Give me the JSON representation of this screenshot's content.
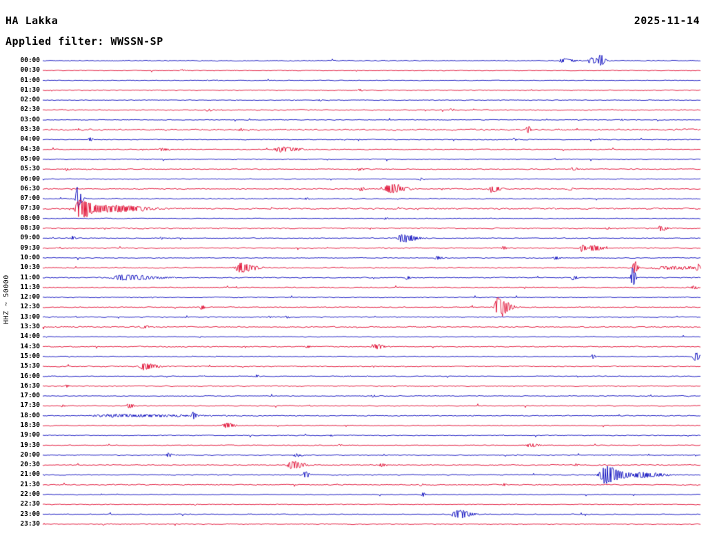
{
  "header": {
    "station": "HA Lakka",
    "date": "2025-11-14",
    "filter_label": "Applied filter: WWSSN-SP"
  },
  "axis": {
    "channel_label": "HHZ ~ 50000"
  },
  "chart_data": {
    "type": "line",
    "subtype": "helicorder-seismogram",
    "title": "HA Lakka",
    "date": "2025-11-14",
    "filter": "WWSSN-SP",
    "channel": "HHZ",
    "scale": 50000,
    "minutes_per_row": 30,
    "trace_colors": {
      "blue": "#0000bb",
      "red": "#df0029"
    },
    "rows": [
      {
        "label": "00:00",
        "color": "blue",
        "noise": 0.8,
        "events": [
          [
            0.79,
            3,
            8
          ],
          [
            0.833,
            5,
            6
          ],
          [
            0.847,
            7,
            3
          ]
        ]
      },
      {
        "label": "00:30",
        "color": "red",
        "noise": 0.7,
        "events": [
          [
            0.21,
            1.5,
            3
          ]
        ]
      },
      {
        "label": "01:00",
        "color": "blue",
        "noise": 0.7,
        "events": []
      },
      {
        "label": "01:30",
        "color": "red",
        "noise": 0.8,
        "events": [
          [
            0.48,
            1.5,
            3
          ]
        ]
      },
      {
        "label": "02:00",
        "color": "blue",
        "noise": 0.7,
        "events": [
          [
            0.42,
            1.5,
            2
          ]
        ]
      },
      {
        "label": "02:30",
        "color": "red",
        "noise": 0.9,
        "events": [
          [
            0.25,
            1.8,
            4
          ],
          [
            0.62,
            1.5,
            3
          ]
        ]
      },
      {
        "label": "03:00",
        "color": "blue",
        "noise": 0.7,
        "events": [
          [
            0.88,
            1.5,
            2
          ]
        ]
      },
      {
        "label": "03:30",
        "color": "red",
        "noise": 1.5,
        "events": [
          [
            0.3,
            2,
            4
          ],
          [
            0.737,
            5,
            2
          ]
        ]
      },
      {
        "label": "04:00",
        "color": "blue",
        "noise": 0.8,
        "events": [
          [
            0.071,
            3,
            2
          ],
          [
            0.716,
            2,
            2
          ]
        ]
      },
      {
        "label": "04:30",
        "color": "red",
        "noise": 0.9,
        "events": [
          [
            0.179,
            2.5,
            5
          ],
          [
            0.36,
            4,
            12
          ]
        ]
      },
      {
        "label": "05:00",
        "color": "blue",
        "noise": 0.7,
        "events": []
      },
      {
        "label": "05:30",
        "color": "red",
        "noise": 1.0,
        "events": [
          [
            0.035,
            2,
            3
          ],
          [
            0.48,
            2,
            3
          ],
          [
            0.805,
            2.5,
            4
          ]
        ]
      },
      {
        "label": "06:00",
        "color": "blue",
        "noise": 0.7,
        "events": [
          [
            0.574,
            2,
            2
          ]
        ]
      },
      {
        "label": "06:30",
        "color": "red",
        "noise": 1.1,
        "events": [
          [
            0.483,
            3,
            4
          ],
          [
            0.527,
            7,
            10
          ],
          [
            0.682,
            5,
            6
          ],
          [
            0.8,
            2.5,
            3
          ]
        ]
      },
      {
        "label": "07:00",
        "color": "blue",
        "noise": 0.9,
        "events": [
          [
            0.052,
            17,
            3
          ],
          [
            0.4,
            1.5,
            3
          ]
        ]
      },
      {
        "label": "07:30",
        "color": "red",
        "noise": 1.4,
        "events": [
          [
            0.056,
            15,
            9
          ],
          [
            0.1,
            5,
            25
          ]
        ]
      },
      {
        "label": "08:00",
        "color": "blue",
        "noise": 0.8,
        "events": [
          [
            0.52,
            1.5,
            3
          ]
        ]
      },
      {
        "label": "08:30",
        "color": "red",
        "noise": 1.2,
        "events": [
          [
            0.857,
            2,
            3
          ],
          [
            0.939,
            4,
            4
          ]
        ]
      },
      {
        "label": "09:00",
        "color": "blue",
        "noise": 0.9,
        "events": [
          [
            0.045,
            3,
            2
          ],
          [
            0.179,
            2,
            2
          ],
          [
            0.546,
            6,
            10
          ]
        ]
      },
      {
        "label": "09:30",
        "color": "red",
        "noise": 1.0,
        "events": [
          [
            0.7,
            3.5,
            2
          ],
          [
            0.819,
            5,
            3
          ],
          [
            0.836,
            5,
            6
          ]
        ]
      },
      {
        "label": "10:00",
        "color": "blue",
        "noise": 0.8,
        "events": [
          [
            0.598,
            3,
            4
          ],
          [
            0.779,
            3,
            3
          ]
        ]
      },
      {
        "label": "10:30",
        "color": "red",
        "noise": 1.1,
        "events": [
          [
            0.3,
            7,
            10
          ],
          [
            0.899,
            13,
            2
          ],
          [
            0.95,
            2,
            40
          ],
          [
            0.995,
            4,
            3
          ]
        ]
      },
      {
        "label": "11:00",
        "color": "blue",
        "noise": 1.0,
        "events": [
          [
            0.122,
            4,
            22
          ],
          [
            0.553,
            3,
            2
          ],
          [
            0.805,
            4,
            3
          ],
          [
            0.896,
            16,
            2
          ]
        ]
      },
      {
        "label": "11:30",
        "color": "red",
        "noise": 1.0,
        "events": [
          [
            0.988,
            3,
            3
          ]
        ]
      },
      {
        "label": "12:00",
        "color": "blue",
        "noise": 0.8,
        "events": []
      },
      {
        "label": "12:30",
        "color": "red",
        "noise": 1.0,
        "events": [
          [
            0.241,
            4,
            2
          ],
          [
            0.692,
            15,
            7
          ]
        ]
      },
      {
        "label": "13:00",
        "color": "blue",
        "noise": 0.9,
        "events": [
          [
            0.344,
            2,
            2
          ],
          [
            0.37,
            2,
            2
          ]
        ]
      },
      {
        "label": "13:30",
        "color": "red",
        "noise": 1.2,
        "events": [
          [
            0.15,
            2.5,
            5
          ]
        ]
      },
      {
        "label": "14:00",
        "color": "blue",
        "noise": 0.7,
        "events": []
      },
      {
        "label": "14:30",
        "color": "red",
        "noise": 1.0,
        "events": [
          [
            0.401,
            2,
            3
          ],
          [
            0.506,
            3.5,
            6
          ]
        ]
      },
      {
        "label": "15:00",
        "color": "blue",
        "noise": 0.8,
        "events": [
          [
            0.836,
            4,
            2
          ],
          [
            0.991,
            6,
            4
          ]
        ]
      },
      {
        "label": "15:30",
        "color": "red",
        "noise": 1.0,
        "events": [
          [
            0.153,
            5,
            9
          ]
        ]
      },
      {
        "label": "16:00",
        "color": "blue",
        "noise": 0.8,
        "events": [
          [
            0.325,
            2,
            2
          ]
        ]
      },
      {
        "label": "16:30",
        "color": "red",
        "noise": 0.9,
        "events": [
          [
            0.035,
            2,
            2
          ]
        ]
      },
      {
        "label": "17:00",
        "color": "blue",
        "noise": 0.8,
        "events": [
          [
            0.501,
            2,
            2
          ]
        ]
      },
      {
        "label": "17:30",
        "color": "red",
        "noise": 0.9,
        "events": [
          [
            0.03,
            2,
            2
          ],
          [
            0.13,
            4,
            3
          ]
        ]
      },
      {
        "label": "18:00",
        "color": "blue",
        "noise": 1.0,
        "events": [
          [
            0.11,
            2,
            55
          ],
          [
            0.228,
            5,
            2
          ]
        ]
      },
      {
        "label": "18:30",
        "color": "red",
        "noise": 0.9,
        "events": [
          [
            0.278,
            4,
            6
          ]
        ]
      },
      {
        "label": "19:00",
        "color": "blue",
        "noise": 0.8,
        "events": [
          [
            0.438,
            1.5,
            2
          ]
        ]
      },
      {
        "label": "19:30",
        "color": "red",
        "noise": 0.9,
        "events": [
          [
            0.45,
            1.5,
            2
          ],
          [
            0.74,
            3,
            6
          ]
        ]
      },
      {
        "label": "20:00",
        "color": "blue",
        "noise": 0.8,
        "events": [
          [
            0.19,
            2.5,
            4
          ],
          [
            0.384,
            2.5,
            4
          ]
        ]
      },
      {
        "label": "20:30",
        "color": "red",
        "noise": 1.0,
        "events": [
          [
            0.378,
            6,
            8
          ],
          [
            0.514,
            3,
            3
          ],
          [
            0.81,
            2,
            2
          ]
        ]
      },
      {
        "label": "21:00",
        "color": "blue",
        "noise": 0.9,
        "events": [
          [
            0.398,
            5,
            3
          ],
          [
            0.855,
            13,
            12
          ],
          [
            0.91,
            4,
            15
          ]
        ]
      },
      {
        "label": "21:30",
        "color": "red",
        "noise": 1.0,
        "events": [
          [
            0.574,
            2,
            2
          ],
          [
            0.7,
            2.5,
            2
          ]
        ]
      },
      {
        "label": "22:00",
        "color": "blue",
        "noise": 0.8,
        "events": [
          [
            0.577,
            3,
            2
          ]
        ]
      },
      {
        "label": "22:30",
        "color": "red",
        "noise": 0.8,
        "events": []
      },
      {
        "label": "23:00",
        "color": "blue",
        "noise": 0.9,
        "events": [
          [
            0.629,
            7,
            9
          ]
        ]
      },
      {
        "label": "23:30",
        "color": "red",
        "noise": 0.8,
        "events": []
      }
    ]
  }
}
